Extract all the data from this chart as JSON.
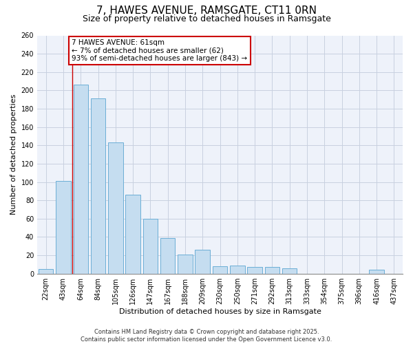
{
  "title_line1": "7, HAWES AVENUE, RAMSGATE, CT11 0RN",
  "title_line2": "Size of property relative to detached houses in Ramsgate",
  "xlabel": "Distribution of detached houses by size in Ramsgate",
  "ylabel": "Number of detached properties",
  "bar_labels": [
    "22sqm",
    "43sqm",
    "64sqm",
    "84sqm",
    "105sqm",
    "126sqm",
    "147sqm",
    "167sqm",
    "188sqm",
    "209sqm",
    "230sqm",
    "250sqm",
    "271sqm",
    "292sqm",
    "313sqm",
    "333sqm",
    "354sqm",
    "375sqm",
    "396sqm",
    "416sqm",
    "437sqm"
  ],
  "bar_values": [
    5,
    101,
    206,
    191,
    143,
    86,
    60,
    39,
    21,
    26,
    8,
    9,
    7,
    7,
    6,
    0,
    0,
    0,
    0,
    4,
    0
  ],
  "bar_color": "#c5ddf0",
  "bar_edge_color": "#6baed6",
  "vline_color": "#cc0000",
  "vline_bar_index": 2,
  "annotation_line1": "7 HAWES AVENUE: 61sqm",
  "annotation_line2": "← 7% of detached houses are smaller (62)",
  "annotation_line3": "93% of semi-detached houses are larger (843) →",
  "ylim": [
    0,
    260
  ],
  "yticks": [
    0,
    20,
    40,
    60,
    80,
    100,
    120,
    140,
    160,
    180,
    200,
    220,
    240,
    260
  ],
  "grid_color": "#c8d0e0",
  "bg_color": "#eef2fa",
  "footer_line1": "Contains HM Land Registry data © Crown copyright and database right 2025.",
  "footer_line2": "Contains public sector information licensed under the Open Government Licence v3.0.",
  "title_fontsize": 11,
  "subtitle_fontsize": 9,
  "axis_label_fontsize": 8,
  "tick_fontsize": 7,
  "annotation_fontsize": 7.5,
  "footer_fontsize": 6
}
